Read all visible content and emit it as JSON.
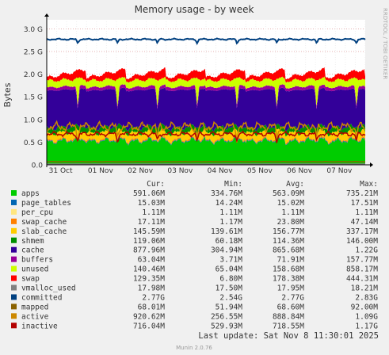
{
  "chart_data": {
    "type": "area",
    "title": "Memory usage - by week",
    "ylabel": "Bytes",
    "side_label": "RRDTOOL / TOBI OETIKER",
    "y_ticks": [
      {
        "value": 0,
        "label": "0.0"
      },
      {
        "value": 0.5,
        "label": "0.5 G"
      },
      {
        "value": 1.0,
        "label": "1.0 G"
      },
      {
        "value": 1.5,
        "label": "1.5 G"
      },
      {
        "value": 2.0,
        "label": "2.0 G"
      },
      {
        "value": 2.5,
        "label": "2.5 G"
      },
      {
        "value": 3.0,
        "label": "3.0 G"
      }
    ],
    "ylim": [
      0,
      3.2
    ],
    "x_ticks": [
      {
        "value": 0.35,
        "label": "31 Oct"
      },
      {
        "value": 1.35,
        "label": "01 Nov"
      },
      {
        "value": 2.35,
        "label": "02 Nov"
      },
      {
        "value": 3.35,
        "label": "03 Nov"
      },
      {
        "value": 4.35,
        "label": "04 Nov"
      },
      {
        "value": 5.35,
        "label": "05 Nov"
      },
      {
        "value": 6.35,
        "label": "06 Nov"
      },
      {
        "value": 7.35,
        "label": "07 Nov"
      }
    ],
    "xlim": [
      0,
      8.0
    ],
    "legend_headers": {
      "cur": "Cur:",
      "min": "Min:",
      "avg": "Avg:",
      "max": "Max:"
    },
    "series": [
      {
        "name": "apps",
        "color": "#00cc00",
        "cur": "591.06M",
        "min": "334.76M",
        "avg": "563.09M",
        "max": "735.21M"
      },
      {
        "name": "page_tables",
        "color": "#0066b3",
        "cur": "15.03M",
        "min": "14.24M",
        "avg": "15.02M",
        "max": "17.51M"
      },
      {
        "name": "per_cpu",
        "color": "#ffe680",
        "cur": "1.11M",
        "min": "1.11M",
        "avg": "1.11M",
        "max": "1.11M"
      },
      {
        "name": "swap_cache",
        "color": "#ff8000",
        "cur": "17.11M",
        "min": "1.17M",
        "avg": "23.80M",
        "max": "47.14M"
      },
      {
        "name": "slab_cache",
        "color": "#ffcc00",
        "cur": "145.59M",
        "min": "139.61M",
        "avg": "156.77M",
        "max": "337.17M"
      },
      {
        "name": "shmem",
        "color": "#008f00",
        "cur": "119.06M",
        "min": "60.18M",
        "avg": "114.36M",
        "max": "146.00M"
      },
      {
        "name": "cache",
        "color": "#330099",
        "cur": "877.96M",
        "min": "304.94M",
        "avg": "865.68M",
        "max": "1.22G"
      },
      {
        "name": "buffers",
        "color": "#990099",
        "cur": "63.04M",
        "min": "3.71M",
        "avg": "71.91M",
        "max": "157.77M"
      },
      {
        "name": "unused",
        "color": "#ccff00",
        "cur": "140.46M",
        "min": "65.04M",
        "avg": "158.68M",
        "max": "858.17M"
      },
      {
        "name": "swap",
        "color": "#ff0000",
        "cur": "129.35M",
        "min": "6.80M",
        "avg": "178.38M",
        "max": "444.31M"
      },
      {
        "name": "vmalloc_used",
        "color": "#808080",
        "cur": "17.98M",
        "min": "17.50M",
        "avg": "17.95M",
        "max": "18.21M"
      },
      {
        "name": "committed",
        "color": "#004080",
        "cur": "2.77G",
        "min": "2.54G",
        "avg": "2.77G",
        "max": "2.83G"
      },
      {
        "name": "mapped",
        "color": "#8a6200",
        "cur": "68.01M",
        "min": "51.94M",
        "avg": "68.60M",
        "max": "92.00M"
      },
      {
        "name": "active",
        "color": "#cc8800",
        "cur": "920.62M",
        "min": "256.55M",
        "avg": "888.84M",
        "max": "1.09G"
      },
      {
        "name": "inactive",
        "color": "#b30000",
        "cur": "716.04M",
        "min": "529.93M",
        "avg": "718.55M",
        "max": "1.17G"
      }
    ],
    "stack_levels": {
      "apps": 0.56,
      "page_tables": 0.015,
      "per_cpu": 0.001,
      "swap_cache": 0.024,
      "slab_cache": 0.15,
      "shmem": 0.11,
      "cache": 0.83,
      "buffers": 0.07,
      "unused": 0.15,
      "swap": 0.17,
      "committed": 2.77,
      "active": 0.84,
      "inactive": 0.68
    }
  },
  "footer": {
    "last_update": "Last update: Sat Nov  8 11:30:01 2025",
    "munin_version": "Munin 2.0.76"
  }
}
